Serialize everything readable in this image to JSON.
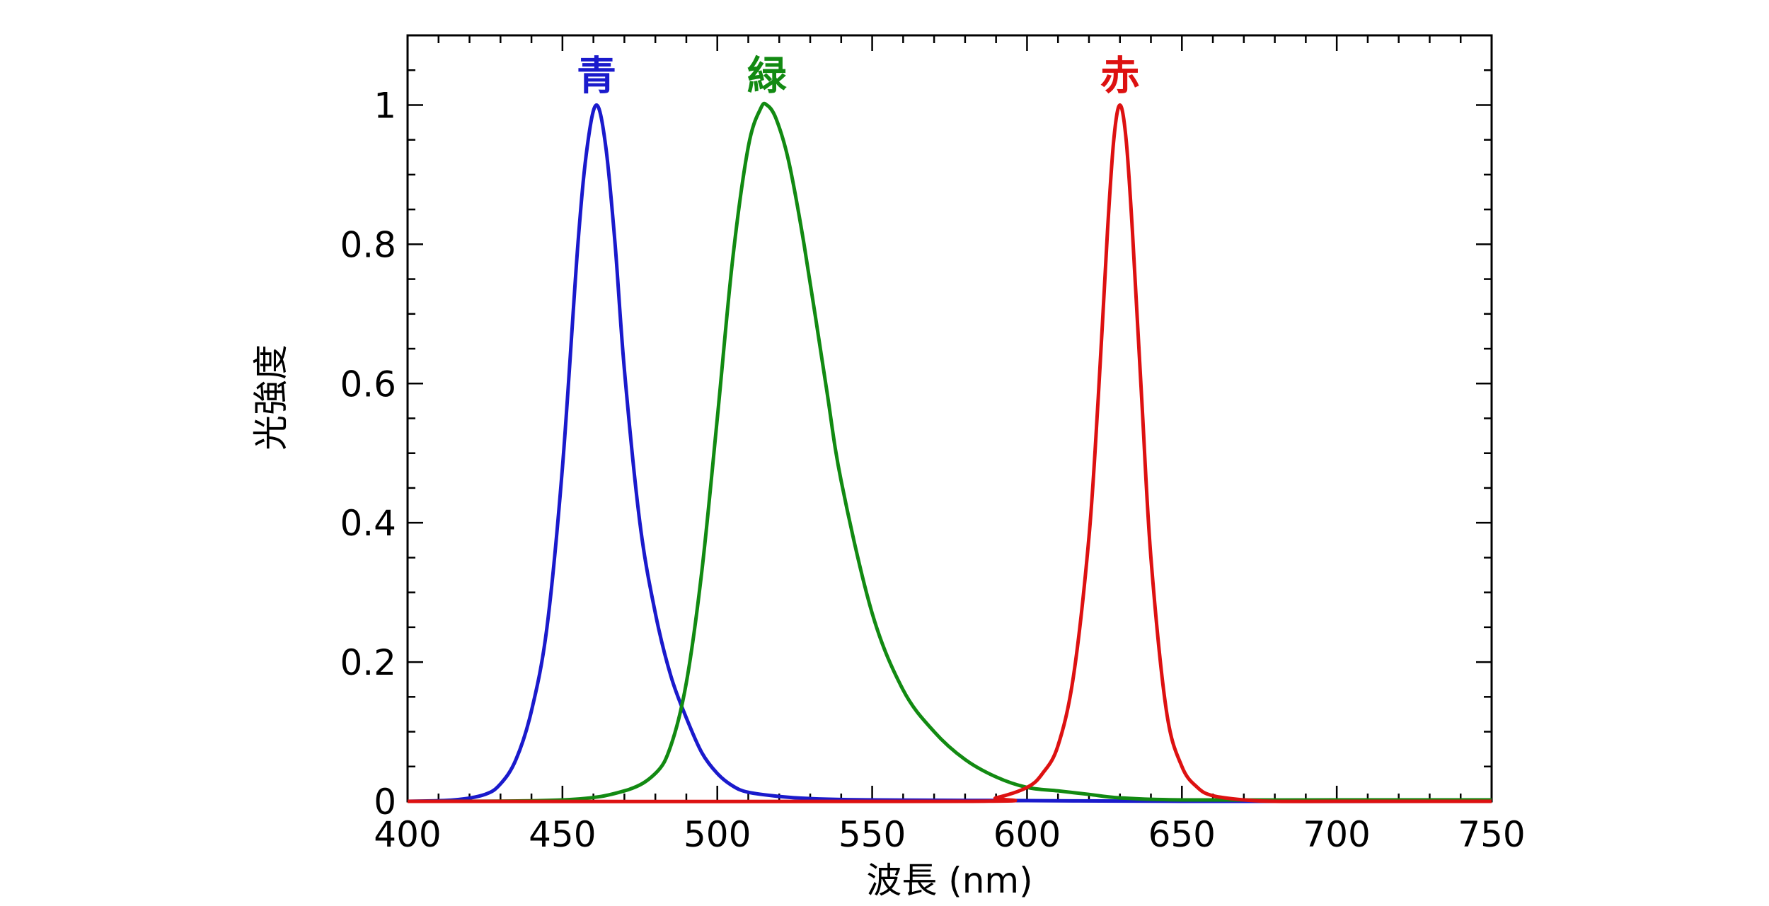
{
  "chart_data": {
    "type": "line",
    "xlabel": "波長 (nm)",
    "ylabel": "光強度",
    "xlim": [
      400,
      750
    ],
    "ylim": [
      0,
      1.1
    ],
    "x_ticks": [
      "400",
      "450",
      "500",
      "550",
      "600",
      "650",
      "700",
      "750"
    ],
    "y_ticks": [
      "0",
      "0.2",
      "0.4",
      "0.6",
      "0.8",
      "1"
    ],
    "grid": false,
    "series": [
      {
        "name": "青",
        "color": "#1a1acc",
        "x": [
          400,
          415,
          425,
          430,
          435,
          440,
          445,
          450,
          455,
          458,
          461,
          464,
          467,
          470,
          475,
          480,
          485,
          490,
          495,
          500,
          505,
          510,
          520,
          530,
          550,
          600,
          650,
          750
        ],
        "y": [
          0.0,
          0.002,
          0.01,
          0.025,
          0.06,
          0.13,
          0.25,
          0.48,
          0.8,
          0.94,
          1.0,
          0.94,
          0.8,
          0.62,
          0.4,
          0.27,
          0.18,
          0.12,
          0.07,
          0.04,
          0.022,
          0.013,
          0.007,
          0.004,
          0.002,
          0.001,
          0.0,
          0.0
        ]
      },
      {
        "name": "緑",
        "color": "#128a12",
        "x": [
          400,
          450,
          470,
          480,
          485,
          490,
          495,
          500,
          505,
          510,
          514,
          516,
          519,
          523,
          528,
          535,
          540,
          550,
          560,
          570,
          580,
          590,
          600,
          610,
          620,
          630,
          650,
          700,
          750
        ],
        "y": [
          0.0,
          0.002,
          0.015,
          0.04,
          0.08,
          0.17,
          0.33,
          0.55,
          0.78,
          0.94,
          0.995,
          1.0,
          0.98,
          0.92,
          0.8,
          0.6,
          0.46,
          0.27,
          0.16,
          0.1,
          0.06,
          0.035,
          0.02,
          0.015,
          0.01,
          0.005,
          0.002,
          0.002,
          0.002
        ]
      },
      {
        "name": "赤",
        "color": "#dd1111",
        "x": [
          400,
          580,
          590,
          600,
          605,
          610,
          615,
          620,
          623,
          626,
          628,
          630,
          632,
          634,
          637,
          640,
          645,
          650,
          655,
          660,
          670,
          680,
          700,
          750
        ],
        "y": [
          0.0,
          0.0,
          0.005,
          0.02,
          0.04,
          0.08,
          0.18,
          0.38,
          0.58,
          0.82,
          0.95,
          1.0,
          0.95,
          0.82,
          0.58,
          0.35,
          0.13,
          0.05,
          0.02,
          0.008,
          0.002,
          0.0,
          0.0,
          0.0
        ]
      }
    ]
  }
}
